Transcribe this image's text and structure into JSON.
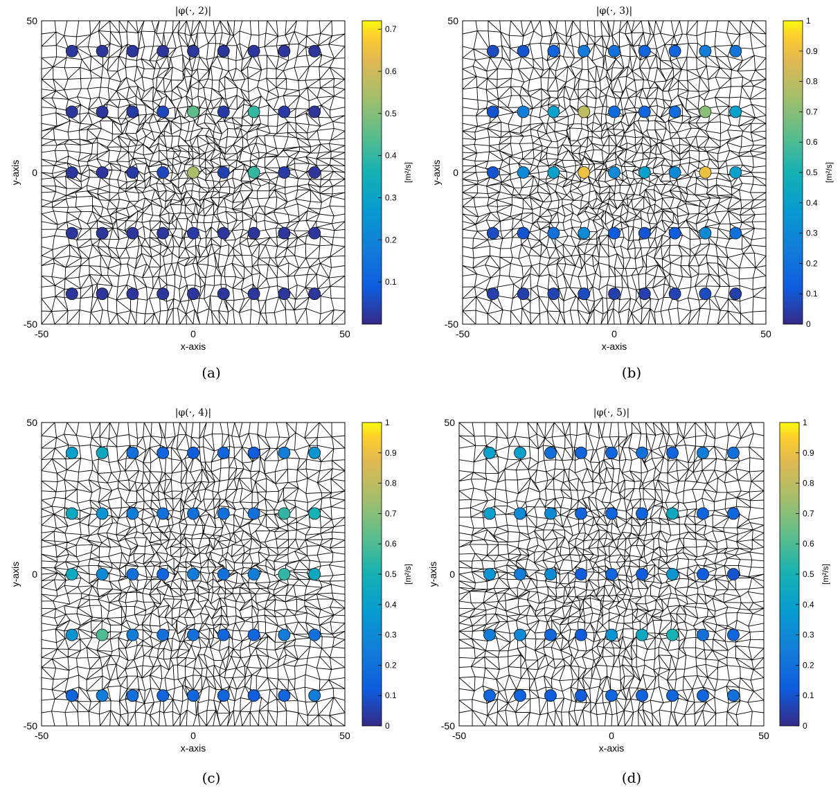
{
  "chart_data": [
    {
      "type": "scatter",
      "panel": "(a)",
      "title": "|φ(·, 2)|",
      "xlabel": "x-axis",
      "ylabel": "y-axis",
      "xlim": [
        -50,
        50
      ],
      "ylim": [
        -50,
        50
      ],
      "xticks": [
        "-50",
        "0",
        "50"
      ],
      "yticks": [
        "-50",
        "0",
        "50"
      ],
      "colorbar_label": "[m²/s]",
      "colorbar_range": [
        0,
        0.72
      ],
      "colorbar_ticks": [
        "0.1",
        "0.2",
        "0.3",
        "0.4",
        "0.5",
        "0.6",
        "0.7"
      ],
      "x": [
        -40,
        -30,
        -20,
        -10,
        0,
        10,
        20,
        30,
        40
      ],
      "y": [
        40,
        20,
        0,
        -20,
        -40
      ],
      "values": [
        [
          0.02,
          0.02,
          0.02,
          0.02,
          0.02,
          0.02,
          0.02,
          0.02,
          0.02
        ],
        [
          0.02,
          0.02,
          0.03,
          0.05,
          0.45,
          0.03,
          0.4,
          0.03,
          0.02
        ],
        [
          0.02,
          0.02,
          0.03,
          0.05,
          0.55,
          0.04,
          0.4,
          0.03,
          0.02
        ],
        [
          0.02,
          0.02,
          0.02,
          0.02,
          0.03,
          0.02,
          0.02,
          0.02,
          0.02
        ],
        [
          0.02,
          0.02,
          0.02,
          0.02,
          0.02,
          0.02,
          0.02,
          0.02,
          0.02
        ]
      ]
    },
    {
      "type": "scatter",
      "panel": "(b)",
      "title": "|φ(·, 3)|",
      "xlabel": "x-axis",
      "ylabel": "y-axis",
      "xlim": [
        -50,
        50
      ],
      "ylim": [
        -50,
        50
      ],
      "xticks": [
        "-50",
        "0",
        "50"
      ],
      "yticks": [
        "-50",
        "0",
        "50"
      ],
      "colorbar_label": "[m²/s]",
      "colorbar_range": [
        0,
        1
      ],
      "colorbar_ticks": [
        "0",
        "0.1",
        "0.2",
        "0.3",
        "0.4",
        "0.5",
        "0.6",
        "0.7",
        "0.8",
        "0.9",
        "1"
      ],
      "x": [
        -40,
        -30,
        -20,
        -10,
        0,
        10,
        20,
        30,
        40
      ],
      "y": [
        40,
        20,
        0,
        -20,
        -40
      ],
      "values": [
        [
          0.08,
          0.1,
          0.15,
          0.25,
          0.2,
          0.15,
          0.15,
          0.25,
          0.22
        ],
        [
          0.1,
          0.25,
          0.4,
          0.8,
          0.18,
          0.15,
          0.18,
          0.7,
          0.4
        ],
        [
          0.1,
          0.3,
          0.4,
          0.9,
          0.3,
          0.4,
          0.3,
          0.9,
          0.4
        ],
        [
          0.08,
          0.1,
          0.2,
          0.3,
          0.12,
          0.1,
          0.12,
          0.3,
          0.2
        ],
        [
          0.05,
          0.05,
          0.06,
          0.08,
          0.05,
          0.05,
          0.06,
          0.08,
          0.05
        ]
      ]
    },
    {
      "type": "scatter",
      "panel": "(c)",
      "title": "|φ(·, 4)|",
      "xlabel": "x-axis",
      "ylabel": "y-axis",
      "xlim": [
        -50,
        50
      ],
      "ylim": [
        -50,
        50
      ],
      "xticks": [
        "-50",
        "0",
        "50"
      ],
      "yticks": [
        "-50",
        "0",
        "50"
      ],
      "colorbar_label": "[m²/s]",
      "colorbar_range": [
        0,
        1
      ],
      "colorbar_ticks": [
        "0",
        "0.1",
        "0.2",
        "0.3",
        "0.4",
        "0.5",
        "0.6",
        "0.7",
        "0.8",
        "0.9",
        "1"
      ],
      "x": [
        -40,
        -30,
        -20,
        -10,
        0,
        10,
        20,
        30,
        40
      ],
      "y": [
        40,
        20,
        0,
        -20,
        -40
      ],
      "values": [
        [
          0.4,
          0.45,
          0.2,
          0.15,
          0.12,
          0.15,
          0.12,
          0.25,
          0.35
        ],
        [
          0.45,
          0.35,
          0.25,
          0.2,
          0.2,
          0.2,
          0.2,
          0.55,
          0.5
        ],
        [
          0.45,
          0.3,
          0.2,
          0.15,
          0.25,
          0.2,
          0.25,
          0.55,
          0.45
        ],
        [
          0.35,
          0.6,
          0.25,
          0.2,
          0.2,
          0.15,
          0.15,
          0.25,
          0.2
        ],
        [
          0.15,
          0.25,
          0.2,
          0.15,
          0.15,
          0.15,
          0.12,
          0.15,
          0.25
        ]
      ]
    },
    {
      "type": "scatter",
      "panel": "(d)",
      "title": "|φ(·, 5)|",
      "xlabel": "x-axis",
      "ylabel": "y-axis",
      "xlim": [
        -50,
        50
      ],
      "ylim": [
        -50,
        50
      ],
      "xticks": [
        "-50",
        "0",
        "50"
      ],
      "yticks": [
        "-50",
        "0",
        "50"
      ],
      "colorbar_label": "[m²/s]",
      "colorbar_range": [
        0,
        1
      ],
      "colorbar_ticks": [
        "0",
        "0.1",
        "0.2",
        "0.3",
        "0.4",
        "0.5",
        "0.6",
        "0.7",
        "0.8",
        "0.9",
        "1"
      ],
      "x": [
        -40,
        -30,
        -20,
        -10,
        0,
        10,
        20,
        30,
        40
      ],
      "y": [
        40,
        20,
        0,
        -20,
        -40
      ],
      "values": [
        [
          0.4,
          0.4,
          0.2,
          0.15,
          0.15,
          0.2,
          0.15,
          0.25,
          0.2
        ],
        [
          0.4,
          0.3,
          0.3,
          0.15,
          0.15,
          0.15,
          0.45,
          0.15,
          0.15
        ],
        [
          0.35,
          0.25,
          0.3,
          0.12,
          0.15,
          0.12,
          0.35,
          0.12,
          0.1
        ],
        [
          0.25,
          0.3,
          0.15,
          0.12,
          0.35,
          0.45,
          0.5,
          0.2,
          0.15
        ],
        [
          0.15,
          0.15,
          0.12,
          0.12,
          0.15,
          0.15,
          0.15,
          0.15,
          0.2
        ]
      ]
    }
  ],
  "captions": [
    "(a)",
    "(b)",
    "(c)",
    "(d)"
  ]
}
